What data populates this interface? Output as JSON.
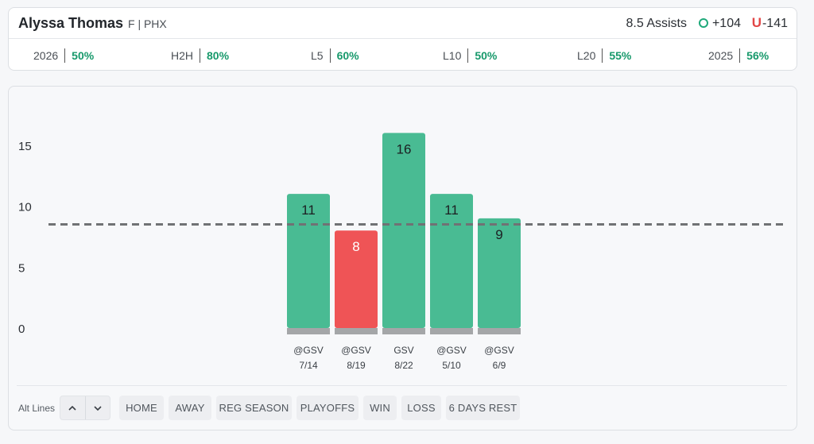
{
  "header": {
    "player_name": "Alyssa Thomas",
    "player_meta": "F | PHX",
    "line_label": "8.5 Assists",
    "over_label": "O",
    "over_odds": "+104",
    "under_label": "U",
    "under_odds": "-141"
  },
  "stats": [
    {
      "label": "2026",
      "value": "50%"
    },
    {
      "label": "H2H",
      "value": "80%"
    },
    {
      "label": "L5",
      "value": "60%"
    },
    {
      "label": "L10",
      "value": "50%"
    },
    {
      "label": "L20",
      "value": "55%"
    },
    {
      "label": "2025",
      "value": "56%"
    }
  ],
  "colors": {
    "hit": "#49bb93",
    "miss": "#ef5456",
    "base": "#a4a6a8",
    "line": "#707274",
    "stat_green": "#17996b"
  },
  "chart_data": {
    "type": "bar",
    "categories": [
      "@GSV",
      "@GSV",
      "GSV",
      "@GSV",
      "@GSV"
    ],
    "dates": [
      "7/14",
      "8/19",
      "8/22",
      "5/10",
      "6/9"
    ],
    "values": [
      11,
      8,
      16,
      11,
      9
    ],
    "line_value": 8.5,
    "yticks": [
      0,
      5,
      10,
      15
    ],
    "ylim": [
      0,
      17
    ],
    "title": "",
    "xlabel": "",
    "ylabel": "",
    "grid": false
  },
  "filters": {
    "alt_lines_label": "Alt Lines",
    "alt_up_icon": "chevron-up-icon",
    "alt_down_icon": "chevron-down-icon",
    "buttons": [
      "HOME",
      "AWAY",
      "REG SEASON",
      "PLAYOFFS",
      "WIN",
      "LOSS",
      "6 DAYS REST"
    ]
  }
}
